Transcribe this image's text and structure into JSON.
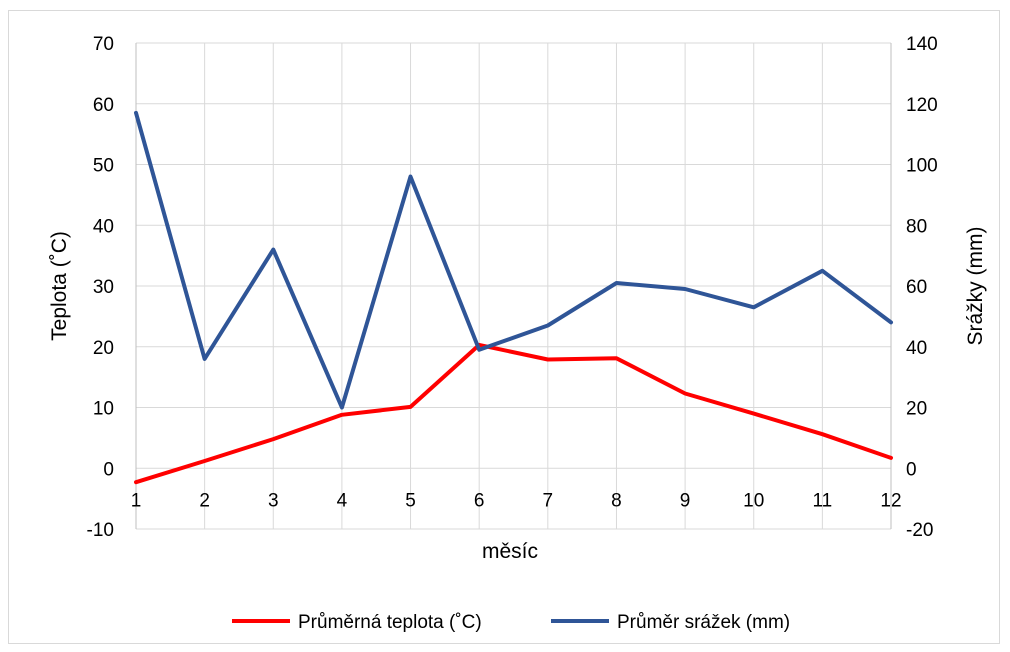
{
  "chart_data": {
    "type": "line",
    "title": "",
    "xlabel": "měsíc",
    "ylabel_left": "Teplota (˚C)",
    "ylabel_right": "Srážky (mm)",
    "x": [
      1,
      2,
      3,
      4,
      5,
      6,
      7,
      8,
      9,
      10,
      11,
      12
    ],
    "ylim_left": [
      -10,
      70
    ],
    "ylim_right": [
      -20,
      140
    ],
    "yticks_left": [
      -10,
      0,
      10,
      20,
      30,
      40,
      50,
      60,
      70
    ],
    "yticks_right": [
      -20,
      0,
      20,
      40,
      60,
      80,
      100,
      120,
      140
    ],
    "grid": true,
    "legend_position": "bottom",
    "series": [
      {
        "name": "Průměrná teplota (˚C)",
        "axis": "left",
        "color": "#ff0000",
        "values": [
          -2.3,
          1.2,
          4.8,
          8.8,
          10.1,
          20.3,
          17.9,
          18.1,
          12.3,
          9.0,
          5.6,
          1.7
        ]
      },
      {
        "name": "Průměr srážek (mm)",
        "axis": "right",
        "color": "#2f5597",
        "values": [
          117,
          36,
          72,
          20,
          96,
          39,
          47,
          61,
          59,
          53,
          65,
          48
        ]
      }
    ]
  }
}
